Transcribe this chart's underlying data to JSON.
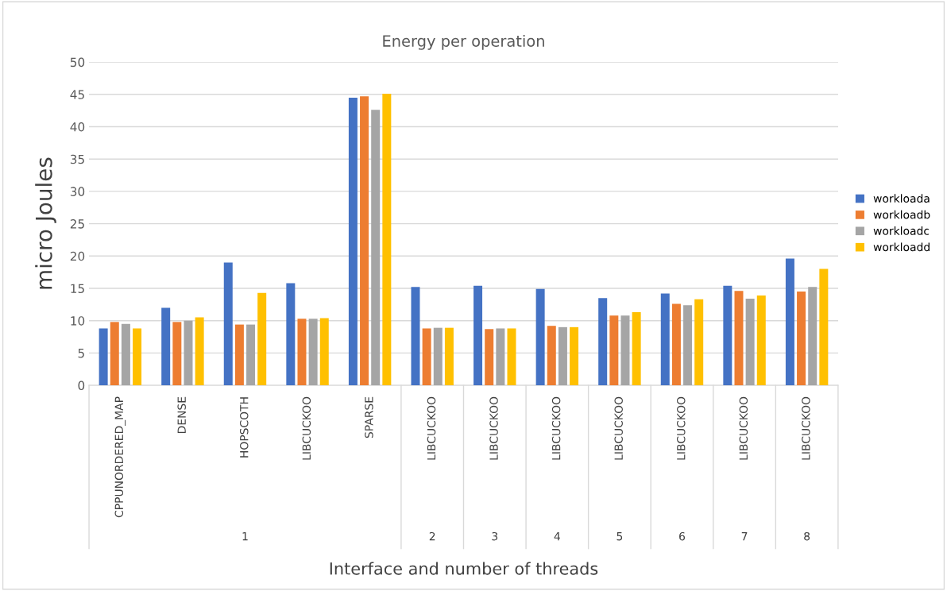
{
  "chart_data": {
    "type": "bar",
    "title": "Energy per operation",
    "xlabel": "Interface and number of threads",
    "ylabel": "micro Joules",
    "categories": [
      "CPPUNORDERED_MAP",
      "DENSE",
      "HOPSCOTH",
      "LIBCUCKOO",
      "SPARSE",
      "LIBCUCKOO",
      "LIBCUCKOO",
      "LIBCUCKOO",
      "LIBCUCKOO",
      "LIBCUCKOO",
      "LIBCUCKOO",
      "LIBCUCKOO"
    ],
    "annotations": [
      "1",
      "2",
      "3",
      "4",
      "5",
      "6",
      "7",
      "8"
    ],
    "series": [
      {
        "name": "workloada",
        "color": "#4472c4",
        "values": [
          8.8,
          12.0,
          19.0,
          15.8,
          44.5,
          15.2,
          15.4,
          14.9,
          13.5,
          14.2,
          15.4,
          19.6
        ]
      },
      {
        "name": "workloadb",
        "color": "#ed7d31",
        "values": [
          9.8,
          9.8,
          9.4,
          10.3,
          44.7,
          8.8,
          8.7,
          9.2,
          10.8,
          12.6,
          14.6,
          14.5
        ]
      },
      {
        "name": "workloadc",
        "color": "#a5a5a5",
        "values": [
          9.5,
          10.0,
          9.4,
          10.3,
          42.6,
          8.9,
          8.8,
          9.0,
          10.8,
          12.4,
          13.4,
          15.2
        ]
      },
      {
        "name": "workloadd",
        "color": "#ffc000",
        "values": [
          8.8,
          10.5,
          14.3,
          10.4,
          45.1,
          8.9,
          8.8,
          9.0,
          11.3,
          13.3,
          13.9,
          18.0
        ]
      }
    ],
    "ylim": [
      0,
      50
    ],
    "yticks": [
      0,
      5,
      10,
      15,
      20,
      25,
      30,
      35,
      40,
      45,
      50
    ],
    "grid": "y",
    "legend": "right"
  }
}
